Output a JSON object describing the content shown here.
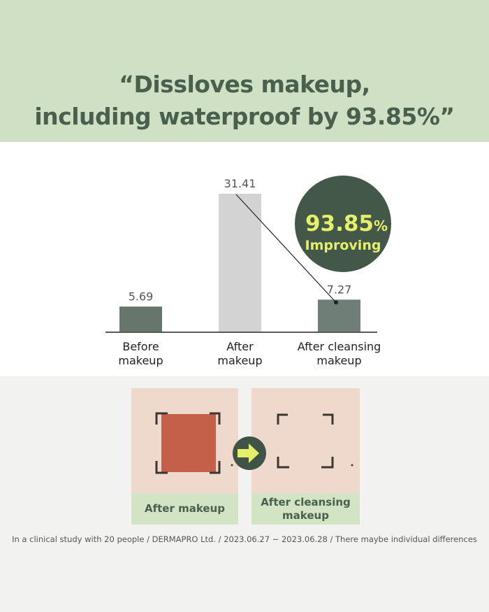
{
  "headline": {
    "line1": "“Dissloves makeup,",
    "line2": "including waterproof by 93.85%”"
  },
  "chart_data": {
    "type": "bar",
    "categories": [
      "Before makeup",
      "After makeup",
      "After cleansing makeup"
    ],
    "category_lines": [
      [
        "Before",
        "makeup"
      ],
      [
        "After",
        "makeup"
      ],
      [
        "After cleansing",
        "makeup"
      ]
    ],
    "values": [
      5.69,
      31.41,
      7.27
    ],
    "value_labels": [
      "5.69",
      "31.41",
      "7.27"
    ],
    "colors": [
      "#66766c",
      "#d3d3d3",
      "#6f7f77"
    ],
    "ylim": [
      0,
      33
    ],
    "grid": false,
    "badge": {
      "value": "93.85",
      "unit": "%",
      "label": "Improving",
      "color": "#435848",
      "text_color": "#e4f06a"
    }
  },
  "photos": [
    {
      "label": "After makeup"
    },
    {
      "label": "After cleansing makeup"
    }
  ],
  "arrow_icon": "arrow-right-icon",
  "footnote": "In a clinical study with 20 people / DERMAPRO Ltd. / 2023.06.27 ~ 2023.06.28 / There maybe individual differences"
}
